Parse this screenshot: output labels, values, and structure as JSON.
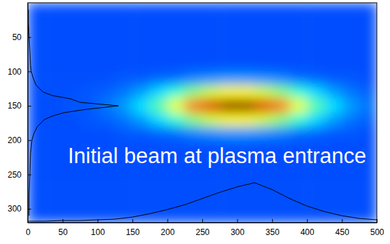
{
  "chart_data": {
    "type": "heatmap",
    "annotation": "Initial beam at plasma entrance",
    "xlim": [
      0,
      500
    ],
    "ylim": [
      320,
      0
    ],
    "xticks": [
      0,
      50,
      100,
      150,
      200,
      250,
      300,
      350,
      400,
      450,
      500
    ],
    "yticks": [
      50,
      100,
      150,
      200,
      250,
      300
    ],
    "zlim": [
      0,
      1
    ],
    "x_edges": [
      0,
      25,
      50,
      75,
      100,
      125,
      150,
      175,
      200,
      225,
      250,
      275,
      300,
      325,
      350,
      375,
      400,
      425,
      450,
      475,
      500
    ],
    "y_edges": [
      0,
      20,
      40,
      60,
      80,
      100,
      120,
      140,
      160,
      180,
      200,
      220,
      240,
      260,
      280,
      300,
      320
    ],
    "z": [
      [
        0.2,
        0.2,
        0.2,
        0.2,
        0.2,
        0.2,
        0.2,
        0.2,
        0.2,
        0.2,
        0.2,
        0.2,
        0.2,
        0.2,
        0.2,
        0.2,
        0.2,
        0.2,
        0.2,
        0.2
      ],
      [
        0.2,
        0.2,
        0.2,
        0.2,
        0.2,
        0.2,
        0.2,
        0.2,
        0.2,
        0.2,
        0.2,
        0.2,
        0.2,
        0.2,
        0.2,
        0.2,
        0.2,
        0.2,
        0.2,
        0.2
      ],
      [
        0.2,
        0.2,
        0.2,
        0.2,
        0.2,
        0.2,
        0.2,
        0.2,
        0.2,
        0.2,
        0.2,
        0.2,
        0.2,
        0.2,
        0.2,
        0.2,
        0.2,
        0.2,
        0.2,
        0.2
      ],
      [
        0.2,
        0.2,
        0.2,
        0.2,
        0.2,
        0.2,
        0.2,
        0.2,
        0.2,
        0.2,
        0.2,
        0.2,
        0.2,
        0.2,
        0.2,
        0.2,
        0.2,
        0.2,
        0.2,
        0.2
      ],
      [
        0.2,
        0.2,
        0.2,
        0.2,
        0.2,
        0.2,
        0.2,
        0.2,
        0.2,
        0.2,
        0.2,
        0.2,
        0.2,
        0.2,
        0.2,
        0.2,
        0.2,
        0.2,
        0.2,
        0.2
      ],
      [
        0.2,
        0.2,
        0.2,
        0.2,
        0.2,
        0.21,
        0.21,
        0.22,
        0.23,
        0.25,
        0.26,
        0.27,
        0.27,
        0.26,
        0.25,
        0.23,
        0.22,
        0.21,
        0.21,
        0.2
      ],
      [
        0.2,
        0.2,
        0.2,
        0.21,
        0.22,
        0.24,
        0.28,
        0.34,
        0.42,
        0.51,
        0.58,
        0.63,
        0.63,
        0.58,
        0.51,
        0.42,
        0.34,
        0.28,
        0.24,
        0.22
      ],
      [
        0.2,
        0.2,
        0.21,
        0.21,
        0.24,
        0.28,
        0.35,
        0.46,
        0.61,
        0.77,
        0.9,
        0.99,
        0.99,
        0.9,
        0.77,
        0.61,
        0.46,
        0.35,
        0.28,
        0.24
      ],
      [
        0.2,
        0.2,
        0.2,
        0.21,
        0.22,
        0.24,
        0.28,
        0.34,
        0.42,
        0.51,
        0.58,
        0.63,
        0.63,
        0.58,
        0.51,
        0.42,
        0.34,
        0.28,
        0.24,
        0.22
      ],
      [
        0.2,
        0.2,
        0.2,
        0.2,
        0.2,
        0.21,
        0.21,
        0.22,
        0.23,
        0.25,
        0.26,
        0.27,
        0.27,
        0.26,
        0.25,
        0.23,
        0.22,
        0.21,
        0.21,
        0.2
      ],
      [
        0.2,
        0.2,
        0.2,
        0.2,
        0.2,
        0.2,
        0.2,
        0.2,
        0.2,
        0.2,
        0.2,
        0.2,
        0.2,
        0.2,
        0.2,
        0.2,
        0.2,
        0.2,
        0.2,
        0.2
      ],
      [
        0.2,
        0.2,
        0.2,
        0.2,
        0.2,
        0.2,
        0.2,
        0.2,
        0.2,
        0.2,
        0.2,
        0.2,
        0.2,
        0.2,
        0.2,
        0.2,
        0.2,
        0.2,
        0.2,
        0.2
      ],
      [
        0.2,
        0.2,
        0.2,
        0.2,
        0.2,
        0.2,
        0.2,
        0.2,
        0.2,
        0.2,
        0.2,
        0.2,
        0.2,
        0.2,
        0.2,
        0.2,
        0.2,
        0.2,
        0.2,
        0.2
      ],
      [
        0.2,
        0.2,
        0.2,
        0.2,
        0.2,
        0.2,
        0.2,
        0.2,
        0.2,
        0.2,
        0.2,
        0.2,
        0.2,
        0.2,
        0.2,
        0.2,
        0.2,
        0.2,
        0.2,
        0.2
      ],
      [
        0.2,
        0.2,
        0.2,
        0.2,
        0.2,
        0.2,
        0.2,
        0.2,
        0.2,
        0.2,
        0.2,
        0.2,
        0.2,
        0.2,
        0.2,
        0.2,
        0.2,
        0.2,
        0.2,
        0.2
      ],
      [
        0.2,
        0.2,
        0.2,
        0.2,
        0.2,
        0.2,
        0.2,
        0.2,
        0.2,
        0.2,
        0.2,
        0.2,
        0.2,
        0.2,
        0.2,
        0.2,
        0.2,
        0.2,
        0.2,
        0.2
      ]
    ],
    "series": [
      {
        "type": "line",
        "color": "#000000",
        "x": [
          0,
          25,
          50,
          75,
          100,
          125,
          150,
          175,
          200,
          225,
          250,
          275,
          300,
          325,
          350,
          375,
          400,
          425,
          450,
          475,
          500
        ],
        "y": [
          318,
          318,
          317,
          317,
          316,
          315,
          312,
          307,
          301,
          294,
          285,
          276,
          268,
          262,
          272,
          285,
          296,
          304,
          310,
          314,
          316
        ]
      },
      {
        "type": "line",
        "color": "#000000",
        "x": [
          1,
          1,
          2,
          3,
          4,
          5,
          8,
          12,
          22,
          35,
          62,
          75,
          130,
          85,
          52,
          35,
          24,
          14,
          9,
          6,
          4,
          3,
          2,
          2
        ],
        "y": [
          10,
          30,
          50,
          70,
          90,
          100,
          110,
          120,
          130,
          135,
          140,
          145,
          150,
          155,
          160,
          165,
          170,
          180,
          190,
          200,
          220,
          250,
          280,
          310
        ]
      }
    ]
  }
}
